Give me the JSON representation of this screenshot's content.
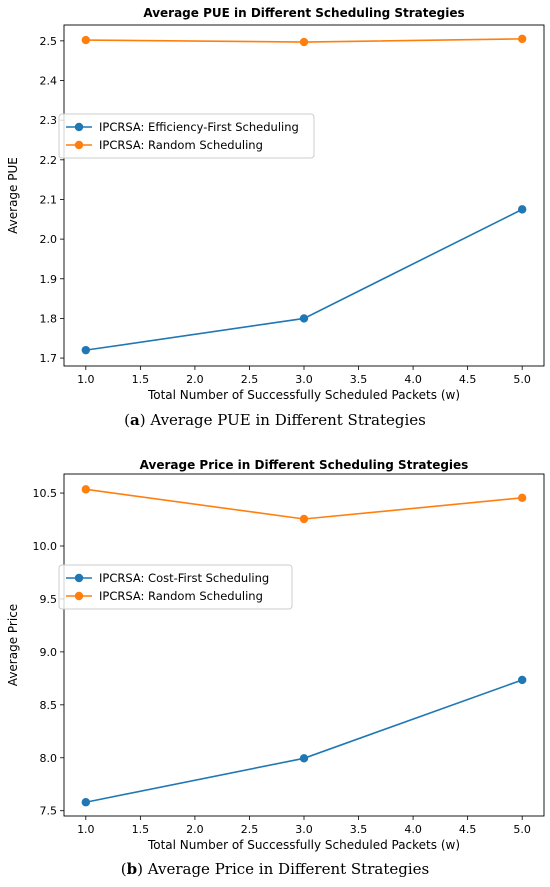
{
  "chart_data": [
    {
      "type": "line",
      "title": "Average PUE in Different Scheduling Strategies",
      "xlabel": "Total Number of Successfully Scheduled Packets (w)",
      "ylabel": "Average PUE",
      "xlim": [
        0.8,
        5.2
      ],
      "ylim": [
        1.68,
        2.54
      ],
      "xticks": [
        1.0,
        1.5,
        2.0,
        2.5,
        3.0,
        3.5,
        4.0,
        4.5,
        5.0
      ],
      "yticks": [
        1.7,
        1.8,
        1.9,
        2.0,
        2.1,
        2.2,
        2.3,
        2.4,
        2.5
      ],
      "x": [
        1.0,
        3.0,
        5.0
      ],
      "series": [
        {
          "name": "IPCRSA: Efficiency-First Scheduling",
          "color": "#1f77b4",
          "values": [
            1.72,
            1.8,
            2.075
          ]
        },
        {
          "name": "IPCRSA: Random Scheduling",
          "color": "#ff7f0e",
          "values": [
            2.502,
            2.497,
            2.505
          ]
        }
      ],
      "legend": "center-left",
      "grid": false
    },
    {
      "type": "line",
      "title": "Average Price in Different Scheduling Strategies",
      "xlabel": "Total Number of Successfully Scheduled Packets (w)",
      "ylabel": "Average Price",
      "xlim": [
        0.8,
        5.2
      ],
      "ylim": [
        7.45,
        10.68
      ],
      "xticks": [
        1.0,
        1.5,
        2.0,
        2.5,
        3.0,
        3.5,
        4.0,
        4.5,
        5.0
      ],
      "yticks": [
        7.5,
        8.0,
        8.5,
        9.0,
        9.5,
        10.0,
        10.5
      ],
      "x": [
        1.0,
        3.0,
        5.0
      ],
      "series": [
        {
          "name": "IPCRSA: Cost-First Scheduling",
          "color": "#1f77b4",
          "values": [
            7.58,
            7.995,
            8.735
          ]
        },
        {
          "name": "IPCRSA: Random Scheduling",
          "color": "#ff7f0e",
          "values": [
            10.535,
            10.255,
            10.455
          ]
        }
      ],
      "legend": "center-left",
      "grid": false
    }
  ],
  "captions": [
    {
      "letter": "a",
      "text": " Average PUE in Different Strategies"
    },
    {
      "letter": "b",
      "text": " Average Price in Different Strategies"
    }
  ]
}
